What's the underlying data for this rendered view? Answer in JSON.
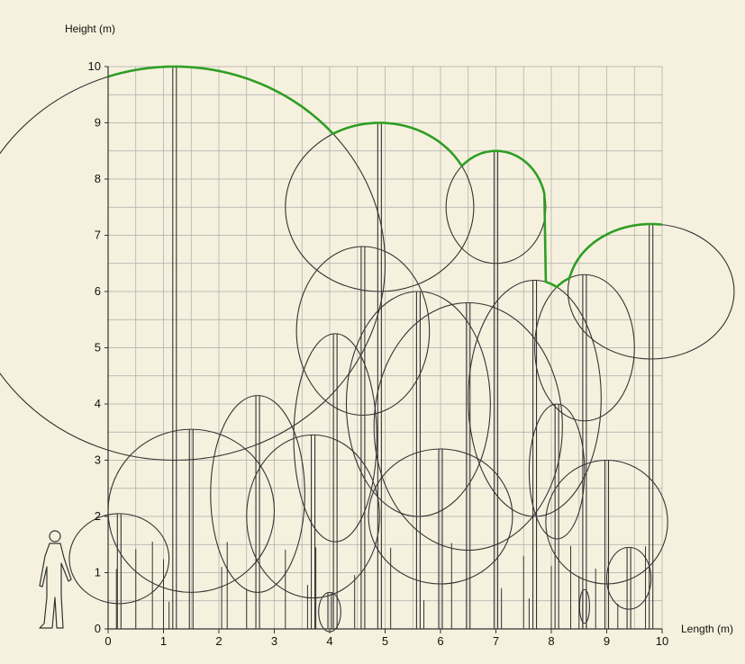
{
  "chart_data": {
    "type": "scatter",
    "title": "",
    "xlabel": "Length (m)",
    "ylabel": "Height (m)",
    "xlim": [
      0,
      10
    ],
    "ylim": [
      0,
      10
    ],
    "x_ticks": [
      0,
      1,
      2,
      3,
      4,
      5,
      6,
      7,
      8,
      9,
      10
    ],
    "y_ticks": [
      0,
      1,
      2,
      3,
      4,
      5,
      6,
      7,
      8,
      9,
      10
    ],
    "grid": true,
    "colors": {
      "background": "#f6f1de",
      "grid": "#aaaaaa",
      "outline": "#333333",
      "canopy_profile": "#2e9e24"
    },
    "trees": [
      {
        "x": 1.2,
        "crown_center": 6.5,
        "crown_half_width": 3.8,
        "crown_half_height": 3.5
      },
      {
        "x": 4.9,
        "crown_center": 7.5,
        "crown_half_width": 1.7,
        "crown_half_height": 1.5
      },
      {
        "x": 7.0,
        "crown_center": 7.5,
        "crown_half_width": 0.9,
        "crown_half_height": 1.0
      },
      {
        "x": 9.8,
        "crown_center": 6.0,
        "crown_half_width": 1.5,
        "crown_half_height": 1.2
      },
      {
        "x": 8.6,
        "crown_center": 5.0,
        "crown_half_width": 0.9,
        "crown_half_height": 1.3
      },
      {
        "x": 4.6,
        "crown_center": 5.3,
        "crown_half_width": 1.2,
        "crown_half_height": 1.5
      },
      {
        "x": 5.6,
        "crown_center": 4.0,
        "crown_half_width": 1.3,
        "crown_half_height": 2.0
      },
      {
        "x": 6.5,
        "crown_center": 3.6,
        "crown_half_width": 1.7,
        "crown_half_height": 2.2
      },
      {
        "x": 7.7,
        "crown_center": 4.1,
        "crown_half_width": 1.2,
        "crown_half_height": 2.1
      },
      {
        "x": 4.1,
        "crown_center": 3.4,
        "crown_half_width": 0.75,
        "crown_half_height": 1.85
      },
      {
        "x": 2.7,
        "crown_center": 2.4,
        "crown_half_width": 0.85,
        "crown_half_height": 1.75
      },
      {
        "x": 3.7,
        "crown_center": 2.0,
        "crown_half_width": 1.2,
        "crown_half_height": 1.45
      },
      {
        "x": 1.5,
        "crown_center": 2.1,
        "crown_half_width": 1.5,
        "crown_half_height": 1.45
      },
      {
        "x": 0.2,
        "crown_center": 1.25,
        "crown_half_width": 0.9,
        "crown_half_height": 0.8
      },
      {
        "x": 6.0,
        "crown_center": 2.0,
        "crown_half_width": 1.3,
        "crown_half_height": 1.2
      },
      {
        "x": 9.0,
        "crown_center": 1.9,
        "crown_half_width": 1.1,
        "crown_half_height": 1.1
      },
      {
        "x": 9.4,
        "crown_center": 0.9,
        "crown_half_width": 0.4,
        "crown_half_height": 0.55
      },
      {
        "x": 8.6,
        "crown_center": 0.4,
        "crown_half_width": 0.09,
        "crown_half_height": 0.3
      },
      {
        "x": 4.0,
        "crown_center": 0.3,
        "crown_half_width": 0.2,
        "crown_half_height": 0.35
      },
      {
        "x": 8.1,
        "crown_center": 2.8,
        "crown_half_width": 0.5,
        "crown_half_height": 1.2
      }
    ],
    "extra_stems": [
      0.15,
      0.5,
      0.8,
      1.0,
      1.1,
      2.05,
      2.15,
      2.5,
      3.2,
      3.6,
      3.75,
      4.45,
      5.1,
      5.7,
      6.2,
      7.1,
      7.5,
      7.6,
      8.0,
      8.35,
      8.5,
      8.8,
      9.2,
      9.7
    ]
  }
}
